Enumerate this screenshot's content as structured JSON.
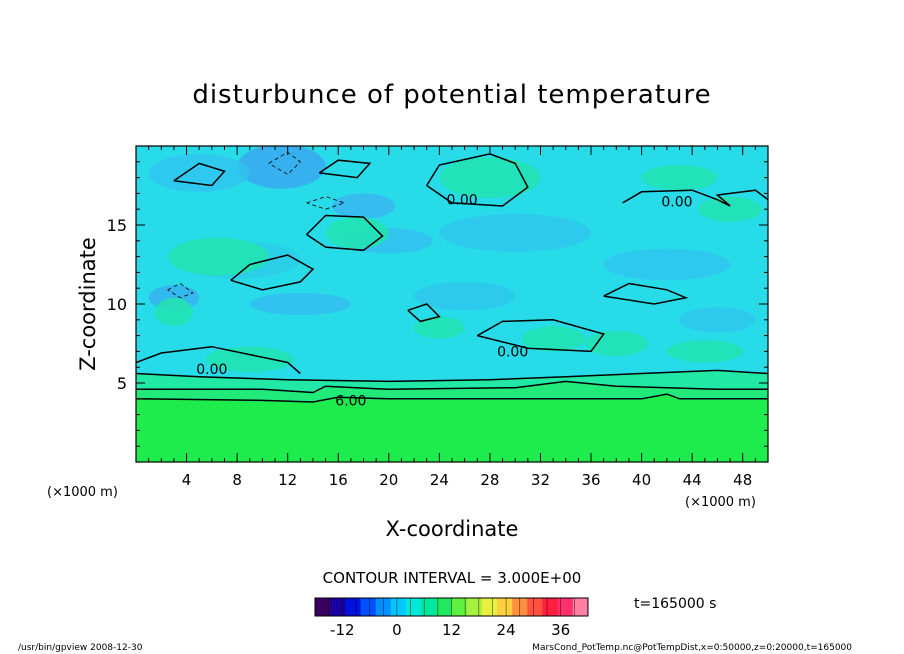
{
  "chart_data": {
    "type": "heatmap",
    "title": "disturbunce of potential temperature",
    "xlabel": "X-coordinate",
    "ylabel": "Z-coordinate",
    "x_unit": "(×1000 m)",
    "y_unit": "(×1000 m)",
    "xlim": [
      0,
      50
    ],
    "ylim": [
      0,
      20
    ],
    "x_ticks": [
      4,
      8,
      12,
      16,
      20,
      24,
      28,
      32,
      36,
      40,
      44,
      48
    ],
    "y_ticks": [
      5,
      10,
      15
    ],
    "contour_labels": [
      {
        "text": "0.00",
        "x": 25.8,
        "z": 16.6
      },
      {
        "text": "0.00",
        "x": 42.8,
        "z": 16.5
      },
      {
        "text": "0.00",
        "x": 29.8,
        "z": 7.0
      },
      {
        "text": "0.00",
        "x": 6.0,
        "z": 5.9
      },
      {
        "text": "6.00",
        "x": 17.0,
        "z": 3.9
      }
    ],
    "contour_interval": "CONTOUR INTERVAL = 3.000E+00",
    "time_label": "t=165000 s",
    "colorbar": {
      "range": [
        -18,
        42
      ],
      "ticks": [
        -12,
        0,
        12,
        24,
        36
      ],
      "colors": [
        "#3a0060",
        "#1a00a0",
        "#0010e0",
        "#0050ff",
        "#0090ff",
        "#00c8ff",
        "#00e8d8",
        "#00e8a0",
        "#20e860",
        "#60f040",
        "#a8f040",
        "#e8f040",
        "#ffd040",
        "#ff9040",
        "#ff5040",
        "#ff2040",
        "#ff3070",
        "#ff80a0"
      ]
    },
    "footer_left": "/usr/bin/gpview   2008-12-30",
    "footer_right": "MarsCond_PotTemp.nc@PotTempDist,x=0:50000,z=0:20000,t=165000"
  }
}
